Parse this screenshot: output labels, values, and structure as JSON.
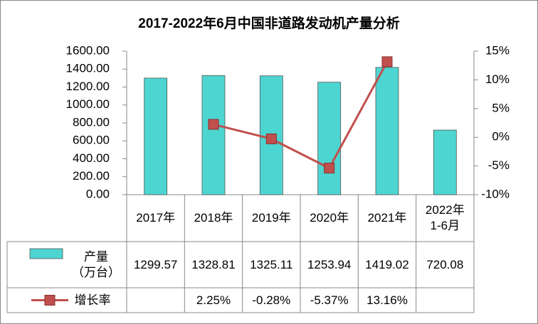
{
  "chart_data": {
    "type": "bar",
    "title": "2017-2022年6月中国非道路发动机产量分析",
    "categories": [
      "2017年",
      "2018年",
      "2019年",
      "2020年",
      "2021年",
      "2022年\n1-6月"
    ],
    "series": [
      {
        "name": "产量\n（万台）",
        "type": "bar",
        "color": "#4dd5d1",
        "values": [
          1299.57,
          1328.81,
          1325.11,
          1253.94,
          1419.02,
          720.08
        ]
      },
      {
        "name": "增长率",
        "type": "line",
        "axis": "y2",
        "color": "#c0504d",
        "values": [
          null,
          2.25,
          -0.28,
          -5.37,
          13.16,
          null
        ],
        "value_labels": [
          null,
          "2.25%",
          "-0.28%",
          "-5.37%",
          "13.16%",
          null
        ]
      }
    ],
    "ylim": [
      0,
      1600
    ],
    "yticks": [
      {
        "value": 0,
        "label": "0.00"
      },
      {
        "value": 200,
        "label": "200.00"
      },
      {
        "value": 400,
        "label": "400.00"
      },
      {
        "value": 600,
        "label": "600.00"
      },
      {
        "value": 800,
        "label": "800.00"
      },
      {
        "value": 1000,
        "label": "1000.00"
      },
      {
        "value": 1200,
        "label": "1200.00"
      },
      {
        "value": 1400,
        "label": "1400.00"
      },
      {
        "value": 1600,
        "label": "1600.00"
      }
    ],
    "y2lim": [
      -10,
      15
    ],
    "y2ticks": [
      {
        "value": -10,
        "label": "-10%"
      },
      {
        "value": -5,
        "label": "-5%"
      },
      {
        "value": 0,
        "label": "0%"
      },
      {
        "value": 5,
        "label": "5%"
      },
      {
        "value": 10,
        "label": "10%"
      },
      {
        "value": 15,
        "label": "15%"
      }
    ]
  }
}
